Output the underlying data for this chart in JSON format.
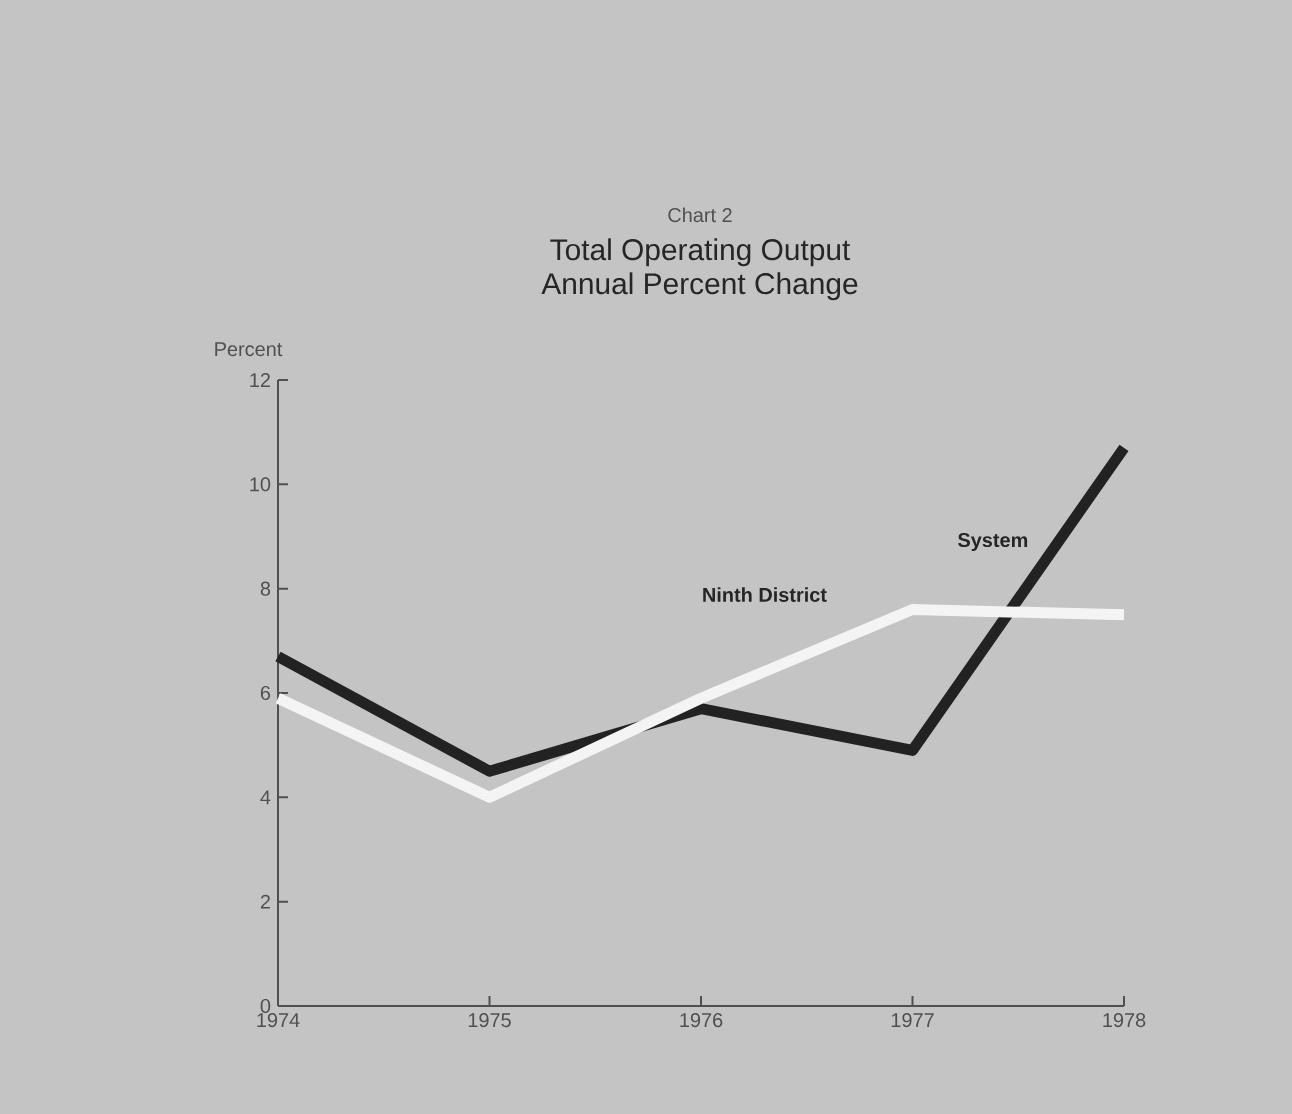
{
  "chart_data": {
    "type": "line",
    "title": "Total Operating Output",
    "subtitle": "Annual Percent Change",
    "annotations": [
      "Chart 2"
    ],
    "ylabel": "Percent",
    "x": [
      1974,
      1975,
      1976,
      1977,
      1978
    ],
    "series": [
      {
        "name": "System",
        "color": "#222222",
        "values": [
          6.7,
          4.5,
          5.7,
          4.9,
          10.7
        ]
      },
      {
        "name": "Ninth District",
        "color": "#f4f4f4",
        "values": [
          5.9,
          4.0,
          5.9,
          7.6,
          7.5
        ]
      }
    ],
    "xlim": [
      1974,
      1978
    ],
    "xticks": [
      1974,
      1975,
      1976,
      1977,
      1978
    ],
    "ylim": [
      0,
      12
    ],
    "yticks": [
      0,
      2,
      4,
      6,
      8,
      10,
      12
    ],
    "legend": false,
    "marker": "none",
    "line_style": "solid"
  }
}
